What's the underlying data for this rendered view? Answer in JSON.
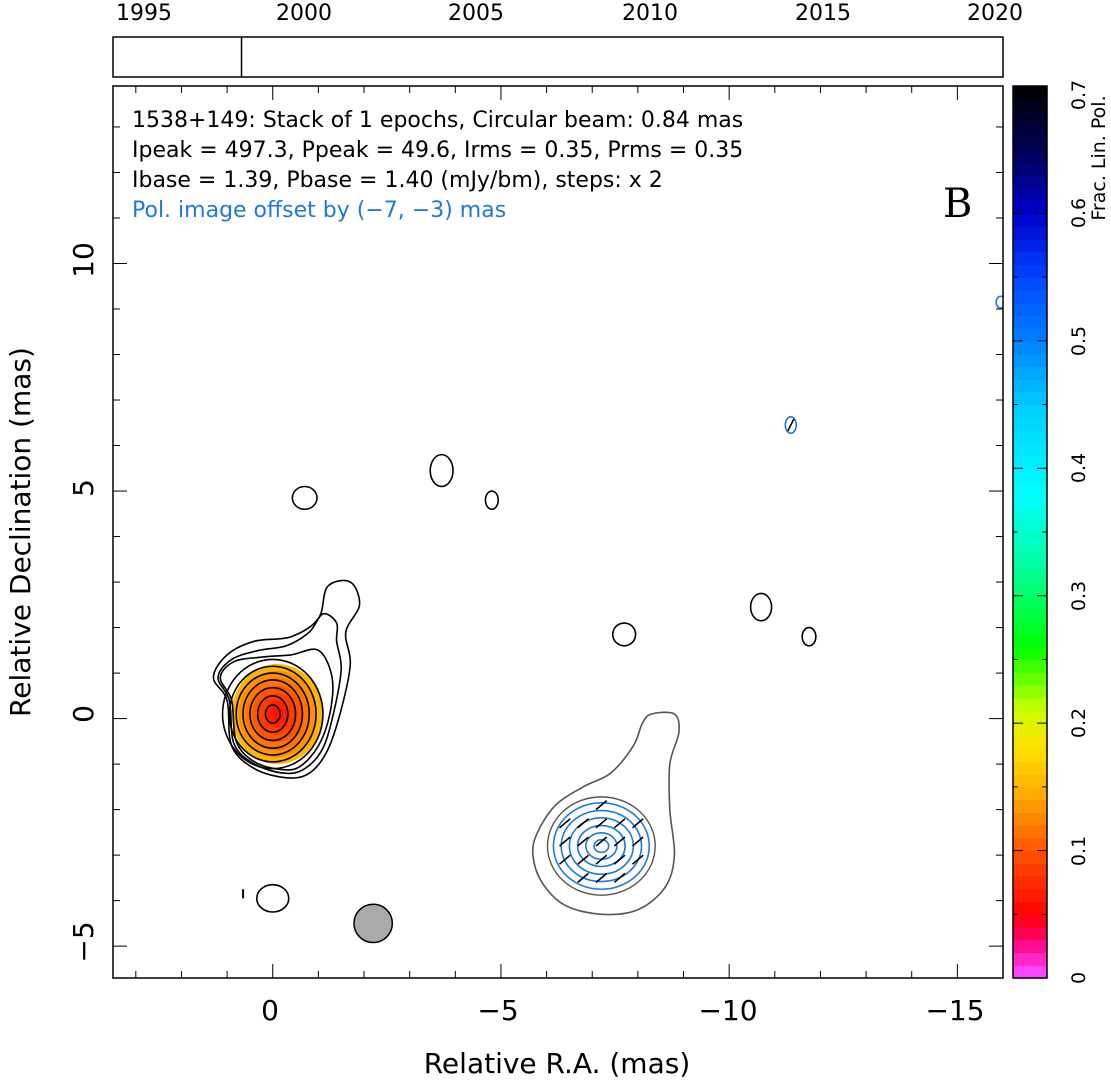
{
  "chart_data": {
    "type": "contour",
    "source": "1538+149",
    "title_lines": [
      "1538+149: Stack of 1 epochs, Circular beam: 0.84 mas",
      "Ipeak = 497.3, Ppeak = 49.6, Irms = 0.35, Prms = 0.35",
      "Ibase = 1.39, Pbase = 1.40 (mJy/bm), steps: x 2"
    ],
    "pol_offset_note": "Pol. image offset by (−7, −3) mas",
    "panel_label": "B",
    "xlabel": "Relative R.A. (mas)",
    "ylabel": "Relative Declination (mas)",
    "xlim": [
      3.5,
      -16
    ],
    "ylim": [
      -5.7,
      13.9
    ],
    "x_ticks": [
      "0",
      "−5",
      "−10",
      "−15"
    ],
    "y_ticks": [
      "−5",
      "0",
      "5",
      "10"
    ],
    "timeline": {
      "years": [
        "1995",
        "2000",
        "2005",
        "2010",
        "2015",
        "2020"
      ],
      "range": [
        1993.3,
        2021.0
      ],
      "epoch_markers": [
        1997.3
      ]
    },
    "colorbar": {
      "label": "Frac. Lin. Pol.",
      "ticks": [
        "0",
        "0.1",
        "0.2",
        "0.3",
        "0.4",
        "0.5",
        "0.6",
        "0.7"
      ],
      "range": [
        0,
        0.7
      ],
      "stops": [
        [
          0.0,
          "#ffffff"
        ],
        [
          0.005,
          "#ff44ff"
        ],
        [
          0.03,
          "#ff0077"
        ],
        [
          0.05,
          "#ff0000"
        ],
        [
          0.1,
          "#ff5500"
        ],
        [
          0.14,
          "#ffa500"
        ],
        [
          0.18,
          "#ffe000"
        ],
        [
          0.21,
          "#ccff00"
        ],
        [
          0.26,
          "#00ff00"
        ],
        [
          0.32,
          "#00ff99"
        ],
        [
          0.38,
          "#00ffff"
        ],
        [
          0.45,
          "#00ccff"
        ],
        [
          0.5,
          "#0080ff"
        ],
        [
          0.55,
          "#0044ff"
        ],
        [
          0.6,
          "#0000cc"
        ],
        [
          0.65,
          "#000055"
        ],
        [
          0.7,
          "#000000"
        ]
      ]
    },
    "beam": {
      "x": -2.2,
      "y": -4.5,
      "diameter_mas": 0.84,
      "color": "#aaaaaa"
    },
    "core": {
      "x": 0.0,
      "y": 0.1,
      "fpol_peak": 0.06
    },
    "total_intensity_contours": [
      {
        "name": "core-level-1",
        "points": [
          [
            1.0,
            0.4
          ],
          [
            1.3,
            0.9
          ],
          [
            1.0,
            1.4
          ],
          [
            0.4,
            1.7
          ],
          [
            -0.4,
            1.8
          ],
          [
            -1.0,
            2.2
          ],
          [
            -1.2,
            2.9
          ],
          [
            -1.7,
            3.0
          ],
          [
            -1.9,
            2.5
          ],
          [
            -1.6,
            1.9
          ],
          [
            -1.7,
            1.2
          ],
          [
            -1.5,
            0.2
          ],
          [
            -1.2,
            -0.7
          ],
          [
            -0.8,
            -1.2
          ],
          [
            -0.3,
            -1.3
          ],
          [
            0.4,
            -1.1
          ],
          [
            0.9,
            -0.6
          ]
        ]
      },
      {
        "name": "core-level-2",
        "points": [
          [
            0.95,
            0.4
          ],
          [
            1.2,
            0.9
          ],
          [
            0.9,
            1.3
          ],
          [
            0.3,
            1.5
          ],
          [
            -0.3,
            1.6
          ],
          [
            -0.8,
            1.9
          ],
          [
            -1.1,
            2.3
          ],
          [
            -1.4,
            2.1
          ],
          [
            -1.4,
            1.7
          ],
          [
            -1.5,
            1.1
          ],
          [
            -1.35,
            0.2
          ],
          [
            -1.1,
            -0.65
          ],
          [
            -0.7,
            -1.1
          ],
          [
            -0.25,
            -1.2
          ],
          [
            0.4,
            -1.0
          ],
          [
            0.85,
            -0.55
          ]
        ]
      },
      {
        "name": "core-level-3",
        "points": [
          [
            0.9,
            0.4
          ],
          [
            1.15,
            0.9
          ],
          [
            0.85,
            1.25
          ],
          [
            0.25,
            1.35
          ],
          [
            -0.4,
            1.4
          ],
          [
            -1.0,
            1.5
          ],
          [
            -1.3,
            0.9
          ],
          [
            -1.25,
            0.1
          ],
          [
            -1.0,
            -0.6
          ],
          [
            -0.6,
            -1.05
          ],
          [
            -0.2,
            -1.12
          ],
          [
            0.4,
            -0.95
          ],
          [
            0.8,
            -0.5
          ]
        ]
      },
      {
        "name": "core-level-4",
        "rx": 1.1,
        "ry": 1.2
      },
      {
        "name": "core-level-5",
        "rx": 0.95,
        "ry": 1.05
      },
      {
        "name": "core-level-6",
        "rx": 0.8,
        "ry": 0.9
      },
      {
        "name": "core-level-7",
        "rx": 0.65,
        "ry": 0.75
      },
      {
        "name": "core-level-8",
        "rx": 0.5,
        "ry": 0.58
      },
      {
        "name": "core-level-9",
        "rx": 0.33,
        "ry": 0.4
      },
      {
        "name": "core-level-10",
        "rx": 0.16,
        "ry": 0.2
      },
      {
        "name": "knot-1",
        "cx": -0.7,
        "cy": 4.85,
        "rx": 0.27,
        "ry": 0.25
      },
      {
        "name": "knot-2",
        "cx": -3.7,
        "cy": 5.45,
        "rx": 0.25,
        "ry": 0.35
      },
      {
        "name": "knot-3",
        "cx": -4.8,
        "cy": 4.8,
        "rx": 0.14,
        "ry": 0.2
      },
      {
        "name": "knot-4",
        "cx": -7.7,
        "cy": 1.85,
        "rx": 0.25,
        "ry": 0.25
      },
      {
        "name": "knot-5",
        "cx": -10.7,
        "cy": 2.45,
        "rx": 0.23,
        "ry": 0.3
      },
      {
        "name": "knot-6",
        "cx": -11.75,
        "cy": 1.8,
        "rx": 0.15,
        "ry": 0.2
      },
      {
        "name": "knot-7",
        "cx": 0.0,
        "cy": -3.95,
        "rx": 0.35,
        "ry": 0.3
      }
    ],
    "offset_intensity_contour": {
      "name": "offset-intensity-contour",
      "points": [
        [
          -5.8,
          -2.5
        ],
        [
          -6.2,
          -1.9
        ],
        [
          -6.8,
          -1.5
        ],
        [
          -7.4,
          -1.2
        ],
        [
          -7.9,
          -0.6
        ],
        [
          -8.1,
          -0.1
        ],
        [
          -8.3,
          0.1
        ],
        [
          -8.8,
          0.1
        ],
        [
          -8.9,
          -0.3
        ],
        [
          -8.7,
          -1.0
        ],
        [
          -8.7,
          -2.0
        ],
        [
          -8.8,
          -3.0
        ],
        [
          -8.6,
          -3.7
        ],
        [
          -8.0,
          -4.2
        ],
        [
          -7.2,
          -4.3
        ],
        [
          -6.4,
          -4.1
        ],
        [
          -5.9,
          -3.6
        ],
        [
          -5.7,
          -3.0
        ]
      ]
    },
    "pol_contours": [
      {
        "name": "pol-level-1",
        "rx": 1.05,
        "ry": 0.95
      },
      {
        "name": "pol-level-2",
        "rx": 0.88,
        "ry": 0.78
      },
      {
        "name": "pol-level-3",
        "rx": 0.7,
        "ry": 0.62
      },
      {
        "name": "pol-level-4",
        "rx": 0.52,
        "ry": 0.45
      },
      {
        "name": "pol-level-5",
        "rx": 0.34,
        "ry": 0.29
      },
      {
        "name": "pol-level-6",
        "rx": 0.16,
        "ry": 0.14
      }
    ],
    "pol_center": {
      "x": -7.2,
      "y": -2.8
    },
    "pol_color": "#1e78e0",
    "evpa_sticks": {
      "angle_deg": 40,
      "grid_step_mas": 0.4
    },
    "far_pol_features": [
      {
        "name": "pol-feature-1",
        "cx": -11.35,
        "cy": 6.45,
        "rx": 0.12,
        "ry": 0.18
      },
      {
        "name": "pol-feature-2",
        "cx": -15.95,
        "cy": 9.15,
        "rx": 0.1,
        "ry": 0.13
      }
    ]
  }
}
